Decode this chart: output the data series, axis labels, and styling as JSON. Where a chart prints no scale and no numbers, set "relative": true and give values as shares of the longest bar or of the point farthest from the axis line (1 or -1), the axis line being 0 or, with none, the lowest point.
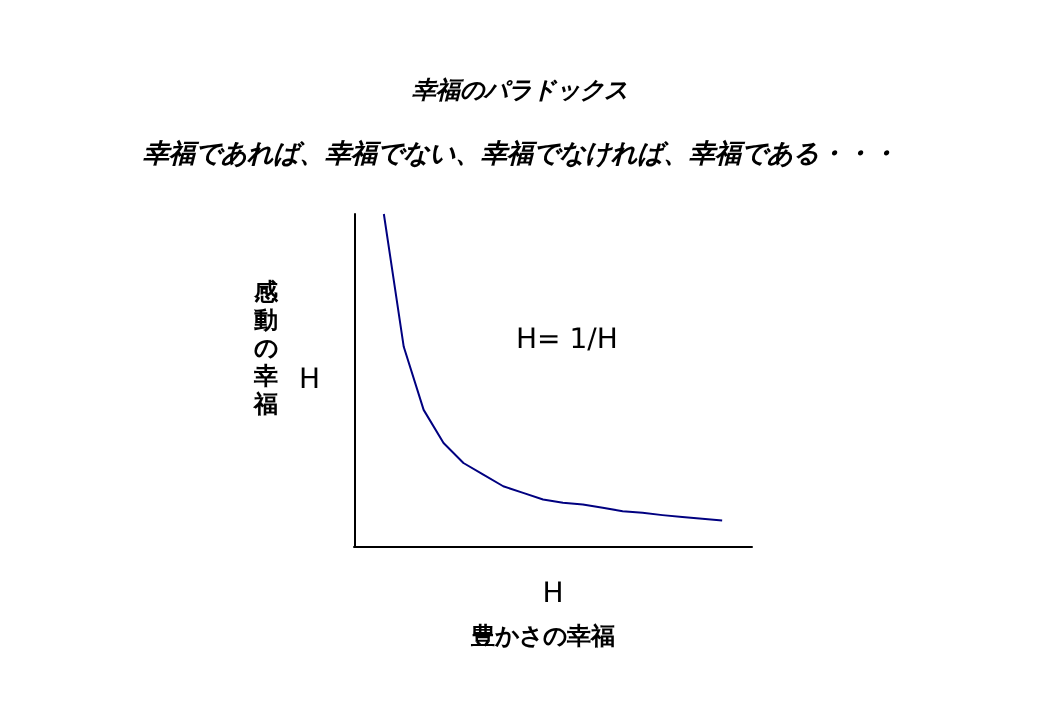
{
  "chart_data": {
    "type": "line",
    "title": "幸福のパラドックス",
    "subtitle": "幸福であれば、幸福でない、幸福でなければ、幸福である・・・",
    "xlabel": "H",
    "ylabel": "H",
    "relative": true,
    "grid": false,
    "marker": "none",
    "line_style": "solid",
    "annotations": [
      "H= 1/H",
      "豊かさの幸福",
      "感動の幸福"
    ],
    "categories": [
      null,
      null,
      null,
      null,
      null,
      null,
      null,
      null,
      null,
      null,
      null,
      null,
      null,
      null,
      null,
      null,
      null,
      null,
      null,
      null
    ],
    "series": [
      {
        "color": "#000080",
        "values": [
          null,
          1,
          0.6,
          0.41,
          0.31,
          0.25,
          0.215,
          0.18,
          0.16,
          0.14,
          0.13,
          0.125,
          0.115,
          0.105,
          0.1,
          0.093,
          0.087,
          0.082,
          0.077,
          null
        ]
      }
    ]
  }
}
